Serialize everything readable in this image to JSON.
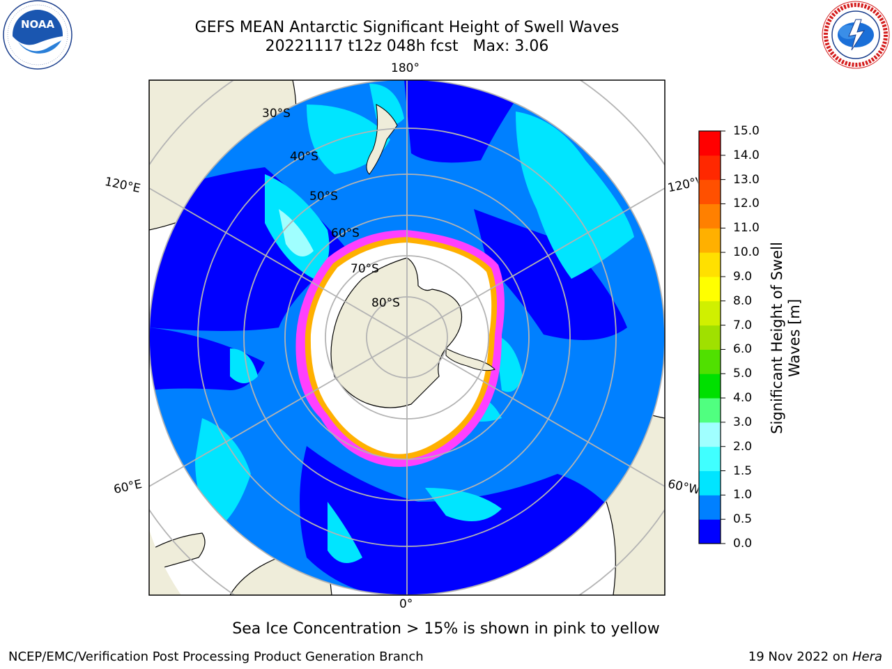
{
  "header": {
    "title_line1": "GEFS MEAN Antarctic Significant Height of Swell Waves",
    "title_line2": "20221117 t12z 048h fcst   Max: 3.06"
  },
  "logos": {
    "left": {
      "icon": "noaa-logo",
      "text": "NOAA",
      "ring_text": "NATIONAL OCEANIC AND ATMOSPHERIC ADMINISTRATION · U.S. DEPARTMENT OF COMMERCE"
    },
    "right": {
      "icon": "nws-logo",
      "ring_text": "NATIONAL WEATHER SERVICE"
    }
  },
  "map": {
    "projection": "south-polar-stereographic",
    "longitude_labels": {
      "top": "180°",
      "bottom": "0°",
      "upper_left": "120°E",
      "upper_right": "120°W",
      "lower_left": "60°E",
      "lower_right": "60°W"
    },
    "latitude_labels": [
      "30°S",
      "40°S",
      "50°S",
      "60°S",
      "70°S",
      "80°S"
    ],
    "colors": {
      "land": "#efedda",
      "ice_free_ocean_low": "#0000ff",
      "ocean_mid": "#0080ff",
      "ocean_high": "#00e5ff",
      "ocean_max": "#a0ffff",
      "sea_ice_edge_1": "#ff40ff",
      "sea_ice_edge_2": "#ffb000",
      "grid": "#b3b3b3"
    }
  },
  "colorbar": {
    "label": "Significant Height of Swell Waves [m]",
    "ticks": [
      "0.0",
      "0.5",
      "1.0",
      "1.5",
      "2.0",
      "3.0",
      "4.0",
      "5.0",
      "6.0",
      "7.0",
      "8.0",
      "9.0",
      "10.0",
      "11.0",
      "12.0",
      "13.0",
      "14.0",
      "15.0"
    ],
    "colors": [
      "#0000ff",
      "#0080ff",
      "#00e5ff",
      "#40ffff",
      "#a0ffff",
      "#50ff80",
      "#00e000",
      "#50e000",
      "#a0e000",
      "#d0f000",
      "#ffff00",
      "#ffe000",
      "#ffb000",
      "#ff8000",
      "#ff5000",
      "#ff2800",
      "#ff0000"
    ]
  },
  "footer": {
    "note": "Sea Ice Concentration > 15% is shown in pink to yellow",
    "credit": "NCEP/EMC/Verification Post Processing Product Generation Branch",
    "date": "19 Nov 2022 on",
    "host": "Hera"
  }
}
